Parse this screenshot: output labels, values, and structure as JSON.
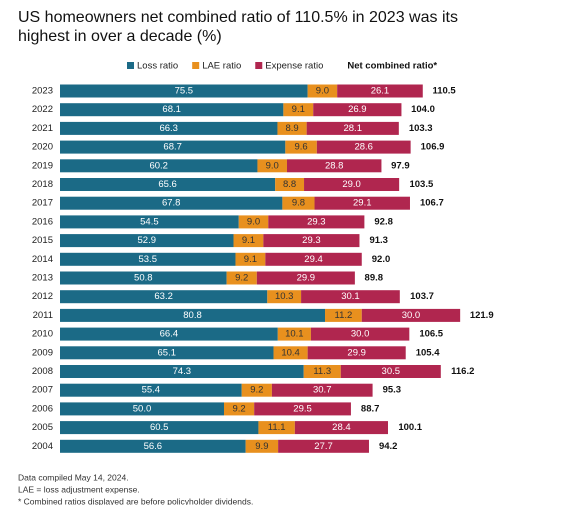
{
  "chart_data": {
    "type": "stacked-bar-horizontal",
    "title": "US homeowners net combined ratio of 110.5% in 2023 was its highest in over a decade (%)",
    "categories": [
      "2023",
      "2022",
      "2021",
      "2020",
      "2019",
      "2018",
      "2017",
      "2016",
      "2015",
      "2014",
      "2013",
      "2012",
      "2011",
      "2010",
      "2009",
      "2008",
      "2007",
      "2006",
      "2005",
      "2004"
    ],
    "series": [
      {
        "name": "Loss ratio",
        "color": "#1b6a86",
        "values": [
          75.5,
          68.1,
          66.3,
          68.7,
          60.2,
          65.6,
          67.8,
          54.5,
          52.9,
          53.5,
          50.8,
          63.2,
          80.8,
          66.4,
          65.1,
          74.3,
          55.4,
          50.0,
          60.5,
          56.6
        ],
        "value_labels": [
          "75.5",
          "68.1",
          "66.3",
          "68.7",
          "60.2",
          "65.6",
          "67.8",
          "54.5",
          "52.9",
          "53.5",
          "50.8",
          "63.2",
          "80.8",
          "66.4",
          "65.1",
          "74.3",
          "55.4",
          "50.0",
          "60.5",
          "56.6"
        ]
      },
      {
        "name": "LAE ratio",
        "color": "#e8901e",
        "values": [
          9.0,
          9.1,
          8.9,
          9.6,
          9.0,
          8.8,
          9.8,
          9.0,
          9.1,
          9.1,
          9.2,
          10.3,
          11.2,
          10.1,
          10.4,
          11.3,
          9.2,
          9.2,
          11.1,
          9.9
        ],
        "value_labels": [
          "9.0",
          "9.1",
          "8.9",
          "9.6",
          "9.0",
          "8.8",
          "9.8",
          "9.0",
          "9.1",
          "9.1",
          "9.2",
          "10.3",
          "11.2",
          "10.1",
          "10.4",
          "11.3",
          "9.2",
          "9.2",
          "11.1",
          "9.9"
        ]
      },
      {
        "name": "Expense ratio",
        "color": "#b0264f",
        "values": [
          26.1,
          26.9,
          28.1,
          28.6,
          28.8,
          29.0,
          29.1,
          29.3,
          29.3,
          29.4,
          29.9,
          30.1,
          30.0,
          30.0,
          29.9,
          30.5,
          30.7,
          29.5,
          28.4,
          27.7
        ],
        "value_labels": [
          "26.1",
          "26.9",
          "28.1",
          "28.6",
          "28.8",
          "29.0",
          "29.1",
          "29.3",
          "29.3",
          "29.4",
          "29.9",
          "30.1",
          "30.0",
          "30.0",
          "29.9",
          "30.5",
          "30.7",
          "29.5",
          "28.4",
          "27.7"
        ]
      }
    ],
    "totals": {
      "name": "Net combined ratio*",
      "values": [
        110.5,
        104.0,
        103.3,
        106.9,
        97.9,
        103.5,
        106.7,
        92.8,
        91.3,
        92.0,
        89.8,
        103.7,
        121.9,
        106.5,
        105.4,
        116.2,
        95.3,
        88.7,
        100.1,
        94.2
      ],
      "value_labels": [
        "110.5",
        "104.0",
        "103.3",
        "106.9",
        "97.9",
        "103.5",
        "106.7",
        "92.8",
        "91.3",
        "92.0",
        "89.8",
        "103.7",
        "121.9",
        "106.5",
        "105.4",
        "116.2",
        "95.3",
        "88.7",
        "100.1",
        "94.2"
      ]
    },
    "notes": [
      "Data compiled May 14, 2024.",
      "LAE = loss adjustment expense.",
      "* Combined ratios displayed are before policyholder dividends."
    ]
  }
}
